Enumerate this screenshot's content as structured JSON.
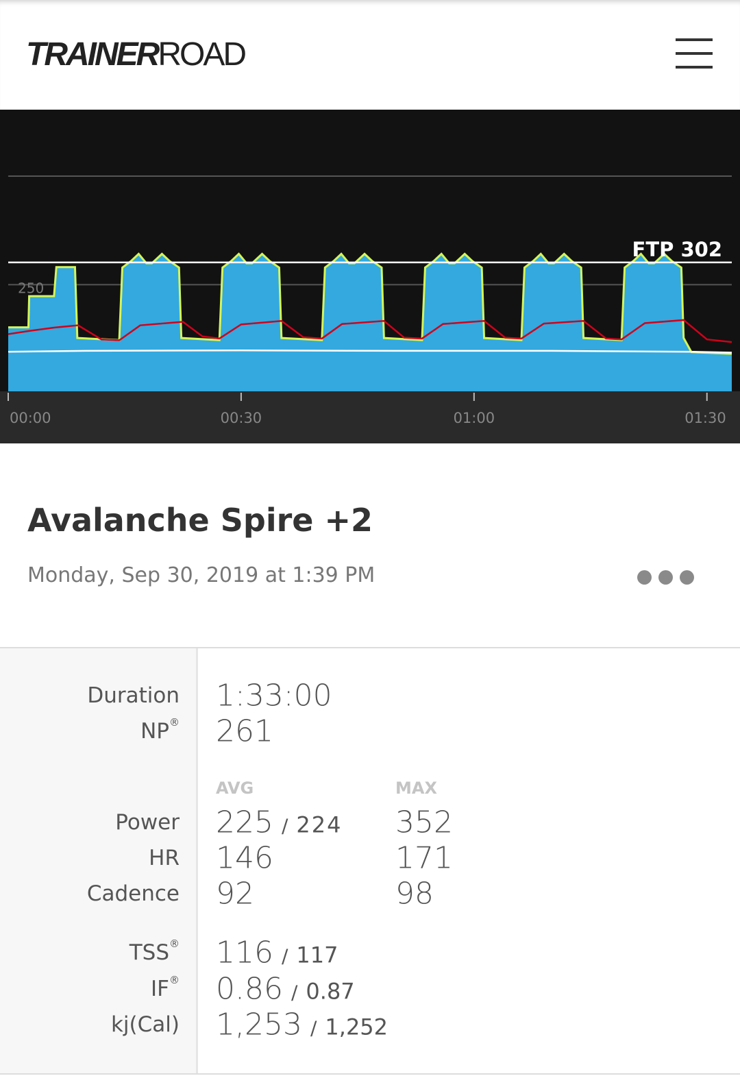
{
  "header": {
    "logo_bold": "TRAINER",
    "logo_light": "ROAD"
  },
  "chart_data": {
    "type": "line",
    "xlim": [
      0,
      93.2
    ],
    "xticks": [
      {
        "value": 0,
        "label": "00:00"
      },
      {
        "value": 30,
        "label": "00:30"
      },
      {
        "value": 60,
        "label": "01:00"
      },
      {
        "value": 90,
        "label": "01:30"
      }
    ],
    "ylim": [
      0,
      660
    ],
    "yticks": [
      250
    ],
    "y2lim": [
      0,
      640
    ],
    "grid": true,
    "annotation": {
      "label": "FTP 302",
      "value": 302
    },
    "series": [
      {
        "name": "Power",
        "color": "#d4f55a",
        "fill": "#33a9df",
        "x": [
          0,
          2.6,
          2.7,
          5.9,
          6.2,
          8.6,
          8.9,
          14.3,
          14.7,
          15.8,
          16.8,
          17.8,
          18.5,
          19.8,
          20.8,
          22.0,
          22.3,
          27.2,
          27.6,
          28.7,
          29.7,
          30.7,
          31.4,
          32.7,
          33.7,
          34.9,
          35.2,
          40.4,
          40.8,
          41.9,
          42.9,
          43.9,
          44.6,
          45.9,
          46.9,
          48.1,
          48.4,
          53.3,
          53.7,
          54.8,
          55.8,
          56.8,
          57.5,
          58.8,
          59.8,
          61.0,
          61.3,
          66.1,
          66.5,
          67.6,
          68.6,
          69.6,
          70.3,
          71.6,
          72.6,
          73.8,
          74.1,
          79,
          79.4,
          80.5,
          81.5,
          82.5,
          83.2,
          84.5,
          85.5,
          86.7,
          87,
          88,
          93.2
        ],
        "values": [
          150,
          150,
          223,
          223,
          291,
          291,
          125,
          120,
          290,
          305,
          322,
          300,
          300,
          322,
          305,
          290,
          125,
          120,
          290,
          305,
          322,
          300,
          300,
          322,
          305,
          290,
          125,
          120,
          290,
          305,
          322,
          300,
          300,
          322,
          305,
          290,
          125,
          120,
          290,
          305,
          322,
          300,
          300,
          322,
          305,
          290,
          125,
          120,
          290,
          305,
          322,
          300,
          300,
          322,
          305,
          290,
          125,
          120,
          290,
          305,
          322,
          300,
          300,
          322,
          305,
          290,
          125,
          92,
          88
        ]
      },
      {
        "name": "HR",
        "color": "#d0021b",
        "axis": "y2",
        "x": [
          0,
          3,
          6,
          9,
          12,
          14.3,
          17,
          22.5,
          25,
          27.2,
          30,
          35.2,
          38,
          40.4,
          43,
          48.4,
          51,
          53.3,
          56,
          61.3,
          64,
          66.1,
          69,
          74.1,
          77,
          79,
          82,
          87,
          90,
          93.2
        ],
        "values": [
          130,
          138,
          145,
          150,
          118,
          116,
          150,
          158,
          125,
          120,
          152,
          160,
          123,
          120,
          153,
          160,
          122,
          120,
          153,
          160,
          122,
          120,
          154,
          160,
          120,
          118,
          155,
          162,
          118,
          112
        ]
      },
      {
        "name": "Cadence",
        "color": "#ffffff",
        "axis": "y2",
        "x": [
          0,
          10,
          30,
          50,
          70,
          88,
          93.2
        ],
        "values": [
          90,
          92,
          93,
          92,
          92,
          90,
          88
        ]
      }
    ]
  },
  "workout": {
    "title": "Avalanche Spire +2",
    "date": "Monday, Sep 30, 2019 at 1:39 PM"
  },
  "stats": {
    "separator": "/",
    "registered": "®",
    "avg_header": "AVG",
    "max_header": "MAX",
    "summary": [
      {
        "label": "Duration",
        "value": "1:33:00"
      },
      {
        "label": "NP",
        "value": 261,
        "registered": true
      }
    ],
    "metrics": [
      {
        "label": "Power",
        "avg": 225,
        "planned": 224,
        "max": 352
      },
      {
        "label": "HR",
        "avg": 146,
        "max": 171
      },
      {
        "label": "Cadence",
        "avg": 92,
        "max": 98
      }
    ],
    "scores": [
      {
        "label": "TSS",
        "value": 116,
        "planned": 117,
        "registered": true
      },
      {
        "label": "IF",
        "value": 0.86,
        "planned": 0.87,
        "registered": true
      },
      {
        "label": "kj(Cal)",
        "value": "1,253",
        "planned": "1,252"
      }
    ]
  }
}
